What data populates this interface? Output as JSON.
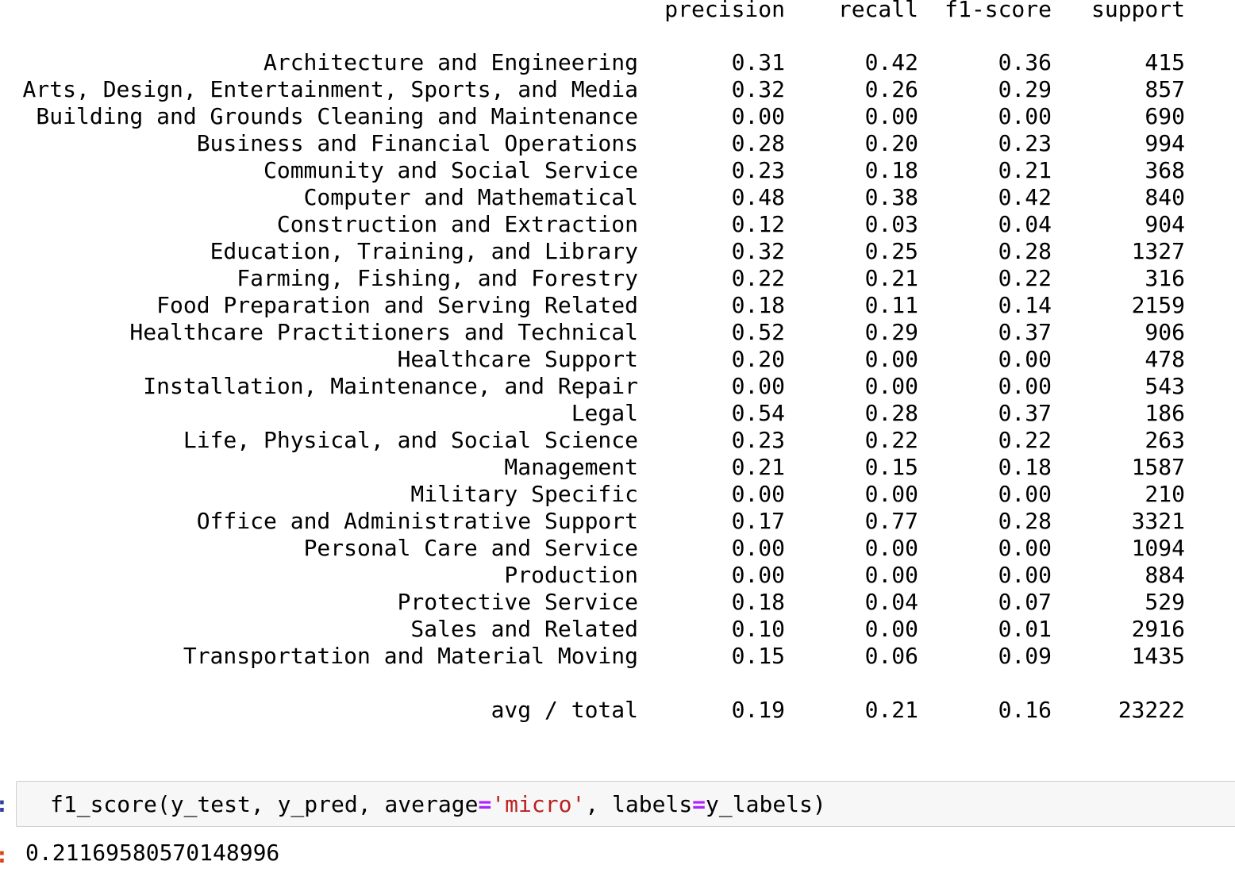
{
  "report": {
    "headers": {
      "precision": "precision",
      "recall": "recall",
      "f1": "f1-score",
      "support": "support"
    },
    "rows": [
      {
        "label": "Architecture and Engineering",
        "precision": "0.31",
        "recall": "0.42",
        "f1": "0.36",
        "support": "415"
      },
      {
        "label": "Arts, Design, Entertainment, Sports, and Media",
        "precision": "0.32",
        "recall": "0.26",
        "f1": "0.29",
        "support": "857"
      },
      {
        "label": "Building and Grounds Cleaning and Maintenance",
        "precision": "0.00",
        "recall": "0.00",
        "f1": "0.00",
        "support": "690"
      },
      {
        "label": "Business and Financial Operations",
        "precision": "0.28",
        "recall": "0.20",
        "f1": "0.23",
        "support": "994"
      },
      {
        "label": "Community and Social Service",
        "precision": "0.23",
        "recall": "0.18",
        "f1": "0.21",
        "support": "368"
      },
      {
        "label": "Computer and Mathematical",
        "precision": "0.48",
        "recall": "0.38",
        "f1": "0.42",
        "support": "840"
      },
      {
        "label": "Construction and Extraction",
        "precision": "0.12",
        "recall": "0.03",
        "f1": "0.04",
        "support": "904"
      },
      {
        "label": "Education, Training, and Library",
        "precision": "0.32",
        "recall": "0.25",
        "f1": "0.28",
        "support": "1327"
      },
      {
        "label": "Farming, Fishing, and Forestry",
        "precision": "0.22",
        "recall": "0.21",
        "f1": "0.22",
        "support": "316"
      },
      {
        "label": "Food Preparation and Serving Related",
        "precision": "0.18",
        "recall": "0.11",
        "f1": "0.14",
        "support": "2159"
      },
      {
        "label": "Healthcare Practitioners and Technical",
        "precision": "0.52",
        "recall": "0.29",
        "f1": "0.37",
        "support": "906"
      },
      {
        "label": "Healthcare Support",
        "precision": "0.20",
        "recall": "0.00",
        "f1": "0.00",
        "support": "478"
      },
      {
        "label": "Installation, Maintenance, and Repair",
        "precision": "0.00",
        "recall": "0.00",
        "f1": "0.00",
        "support": "543"
      },
      {
        "label": "Legal",
        "precision": "0.54",
        "recall": "0.28",
        "f1": "0.37",
        "support": "186"
      },
      {
        "label": "Life, Physical, and Social Science",
        "precision": "0.23",
        "recall": "0.22",
        "f1": "0.22",
        "support": "263"
      },
      {
        "label": "Management",
        "precision": "0.21",
        "recall": "0.15",
        "f1": "0.18",
        "support": "1587"
      },
      {
        "label": "Military Specific",
        "precision": "0.00",
        "recall": "0.00",
        "f1": "0.00",
        "support": "210"
      },
      {
        "label": "Office and Administrative Support",
        "precision": "0.17",
        "recall": "0.77",
        "f1": "0.28",
        "support": "3321"
      },
      {
        "label": "Personal Care and Service",
        "precision": "0.00",
        "recall": "0.00",
        "f1": "0.00",
        "support": "1094"
      },
      {
        "label": "Production",
        "precision": "0.00",
        "recall": "0.00",
        "f1": "0.00",
        "support": "884"
      },
      {
        "label": "Protective Service",
        "precision": "0.18",
        "recall": "0.04",
        "f1": "0.07",
        "support": "529"
      },
      {
        "label": "Sales and Related",
        "precision": "0.10",
        "recall": "0.00",
        "f1": "0.01",
        "support": "2916"
      },
      {
        "label": "Transportation and Material Moving",
        "precision": "0.15",
        "recall": "0.06",
        "f1": "0.09",
        "support": "1435"
      }
    ],
    "total": {
      "label": "avg / total",
      "precision": "0.19",
      "recall": "0.21",
      "f1": "0.16",
      "support": "23222"
    }
  },
  "cell": {
    "input_prompt": ":",
    "code_tokens": [
      {
        "text": "f1_score(y_test, y_pred, average",
        "kind": "plain"
      },
      {
        "text": "=",
        "kind": "op"
      },
      {
        "text": "'micro'",
        "kind": "str"
      },
      {
        "text": ", labels",
        "kind": "plain"
      },
      {
        "text": "=",
        "kind": "op"
      },
      {
        "text": "y_labels)",
        "kind": "plain"
      }
    ],
    "output_prompt": ":",
    "output": "0.21169580570148996"
  }
}
